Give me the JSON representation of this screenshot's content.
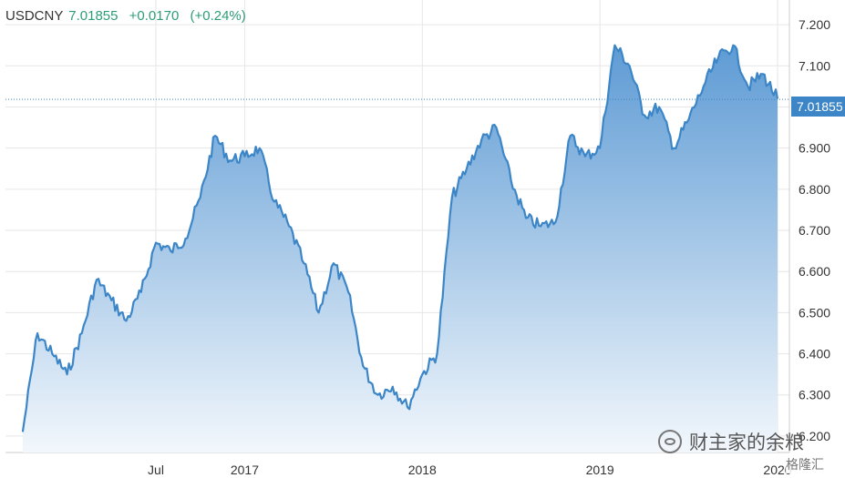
{
  "header": {
    "symbol": "USDCNY",
    "price": "7.01855",
    "change": "+0.0170",
    "change_pct": "(+0.24%)"
  },
  "colors": {
    "line": "#3c86c8",
    "fill_top": "#5e9bd4",
    "fill_bottom": "#f2f7fc",
    "grid": "#e6e6e6",
    "positive": "#2e9c78"
  },
  "last_label": "7.01855",
  "watermark": {
    "icon": "wechat-icon",
    "text": "财主家的余粮",
    "brand": "格隆汇"
  },
  "chart_data": {
    "type": "area",
    "title": "",
    "xlabel": "",
    "ylabel": "",
    "ylim": [
      6.16,
      7.26
    ],
    "y_ticks": [
      "6.200",
      "6.300",
      "6.400",
      "6.500",
      "6.600",
      "6.700",
      "6.800",
      "6.900",
      "7.000",
      "7.100",
      "7.200"
    ],
    "x_ticks": [
      {
        "label": "Jul",
        "x": "2016-07"
      },
      {
        "label": "2017",
        "x": "2017-01"
      },
      {
        "label": "2018",
        "x": "2018-01"
      },
      {
        "label": "2019",
        "x": "2019-01"
      },
      {
        "label": "2020",
        "x": "2020-01"
      }
    ],
    "last_value": 7.01855,
    "grid": true,
    "series": [
      {
        "x": [
          "2015-10",
          "2015-11",
          "2015-12",
          "2016-01",
          "2016-02",
          "2016-03",
          "2016-04",
          "2016-05",
          "2016-06",
          "2016-07",
          "2016-08",
          "2016-09",
          "2016-10",
          "2016-11",
          "2016-12",
          "2017-01",
          "2017-02",
          "2017-03",
          "2017-04",
          "2017-05",
          "2017-06",
          "2017-07",
          "2017-08",
          "2017-09",
          "2017-10",
          "2017-11",
          "2017-12",
          "2018-01",
          "2018-02",
          "2018-03",
          "2018-04",
          "2018-05",
          "2018-06",
          "2018-07",
          "2018-08",
          "2018-09",
          "2018-10",
          "2018-11",
          "2018-12",
          "2019-01",
          "2019-02",
          "2019-03",
          "2019-04",
          "2019-05",
          "2019-06",
          "2019-07",
          "2019-08",
          "2019-09",
          "2019-10",
          "2019-11",
          "2019-12",
          "2020-01"
        ],
        "values": [
          6.21,
          6.45,
          6.4,
          6.35,
          6.45,
          6.58,
          6.53,
          6.48,
          6.55,
          6.67,
          6.65,
          6.68,
          6.78,
          6.93,
          6.87,
          6.88,
          6.9,
          6.77,
          6.71,
          6.62,
          6.5,
          6.62,
          6.55,
          6.37,
          6.3,
          6.32,
          6.27,
          6.35,
          6.4,
          6.78,
          6.85,
          6.92,
          6.95,
          6.82,
          6.73,
          6.71,
          6.72,
          6.93,
          6.88,
          6.9,
          7.15,
          7.1,
          6.98,
          7.0,
          6.9,
          6.97,
          7.05,
          7.12,
          7.15,
          7.05,
          7.08,
          7.02
        ]
      }
    ]
  }
}
